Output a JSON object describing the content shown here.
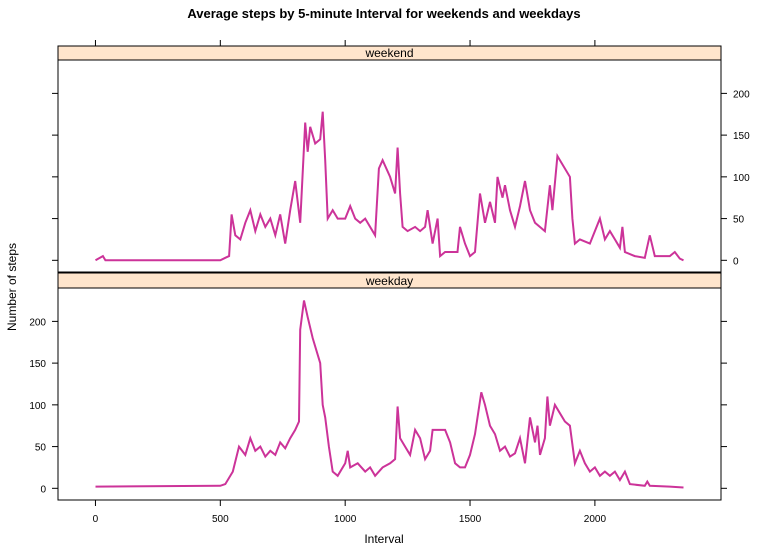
{
  "chart_data": {
    "type": "line",
    "title": "Average steps by 5-minute Interval for weekends and weekdays",
    "xlabel": "Interval",
    "ylabel": "Number of steps",
    "xlim": [
      -150,
      2505
    ],
    "xticks": [
      0,
      500,
      1000,
      1500,
      2000
    ],
    "ylim": [
      -14,
      240
    ],
    "yticks": [
      0,
      50,
      100,
      150,
      200
    ],
    "strip_color": "#ffe5cc",
    "series": [
      {
        "name": "weekend",
        "color": "#cc3399",
        "x": [
          0,
          30,
          40,
          500,
          520,
          535,
          545,
          560,
          580,
          600,
          620,
          640,
          660,
          680,
          700,
          720,
          740,
          760,
          780,
          800,
          820,
          840,
          850,
          860,
          880,
          900,
          910,
          920,
          930,
          950,
          970,
          1000,
          1020,
          1040,
          1060,
          1080,
          1100,
          1120,
          1135,
          1150,
          1180,
          1200,
          1210,
          1220,
          1230,
          1250,
          1280,
          1300,
          1320,
          1330,
          1350,
          1370,
          1380,
          1400,
          1450,
          1460,
          1480,
          1500,
          1520,
          1540,
          1560,
          1580,
          1600,
          1610,
          1630,
          1640,
          1660,
          1680,
          1700,
          1720,
          1740,
          1760,
          1800,
          1820,
          1830,
          1850,
          1900,
          1910,
          1920,
          1940,
          1980,
          2020,
          2040,
          2060,
          2080,
          2100,
          2110,
          2120,
          2160,
          2200,
          2220,
          2240,
          2300,
          2320,
          2340,
          2355
        ],
        "values": [
          0,
          5,
          0,
          0,
          3,
          5,
          55,
          30,
          25,
          45,
          60,
          35,
          55,
          40,
          50,
          30,
          55,
          20,
          60,
          95,
          45,
          165,
          130,
          160,
          140,
          145,
          178,
          120,
          50,
          60,
          50,
          50,
          65,
          50,
          45,
          50,
          40,
          30,
          110,
          120,
          100,
          80,
          135,
          80,
          40,
          35,
          40,
          35,
          40,
          60,
          20,
          50,
          5,
          10,
          10,
          40,
          20,
          5,
          10,
          80,
          45,
          70,
          45,
          100,
          75,
          90,
          60,
          40,
          65,
          95,
          60,
          45,
          35,
          90,
          60,
          125,
          100,
          50,
          20,
          25,
          20,
          50,
          25,
          35,
          25,
          15,
          40,
          10,
          5,
          3,
          30,
          5,
          5,
          10,
          2,
          0
        ]
      },
      {
        "name": "weekday",
        "color": "#cc3399",
        "x": [
          0,
          500,
          520,
          550,
          575,
          600,
          620,
          640,
          660,
          680,
          700,
          720,
          740,
          760,
          780,
          800,
          815,
          820,
          835,
          850,
          870,
          900,
          910,
          920,
          935,
          950,
          970,
          1000,
          1010,
          1020,
          1050,
          1080,
          1100,
          1120,
          1150,
          1180,
          1200,
          1210,
          1220,
          1240,
          1260,
          1280,
          1300,
          1320,
          1340,
          1350,
          1400,
          1420,
          1440,
          1460,
          1480,
          1500,
          1520,
          1545,
          1560,
          1580,
          1600,
          1620,
          1640,
          1660,
          1680,
          1700,
          1720,
          1740,
          1760,
          1770,
          1780,
          1800,
          1810,
          1820,
          1840,
          1860,
          1880,
          1900,
          1920,
          1940,
          1960,
          1980,
          2000,
          2020,
          2040,
          2060,
          2080,
          2100,
          2120,
          2140,
          2200,
          2210,
          2220,
          2300,
          2355
        ],
        "values": [
          2,
          3,
          5,
          20,
          50,
          40,
          60,
          45,
          50,
          38,
          45,
          40,
          55,
          48,
          60,
          70,
          80,
          190,
          225,
          205,
          180,
          150,
          100,
          85,
          50,
          20,
          15,
          30,
          45,
          25,
          30,
          20,
          25,
          15,
          25,
          30,
          35,
          98,
          60,
          50,
          40,
          70,
          60,
          35,
          45,
          70,
          70,
          55,
          30,
          25,
          25,
          40,
          65,
          115,
          100,
          75,
          65,
          45,
          50,
          38,
          42,
          60,
          30,
          85,
          55,
          75,
          40,
          60,
          110,
          75,
          100,
          90,
          80,
          75,
          30,
          45,
          30,
          20,
          25,
          15,
          20,
          15,
          20,
          10,
          20,
          5,
          3,
          8,
          3,
          2,
          1
        ]
      }
    ]
  }
}
